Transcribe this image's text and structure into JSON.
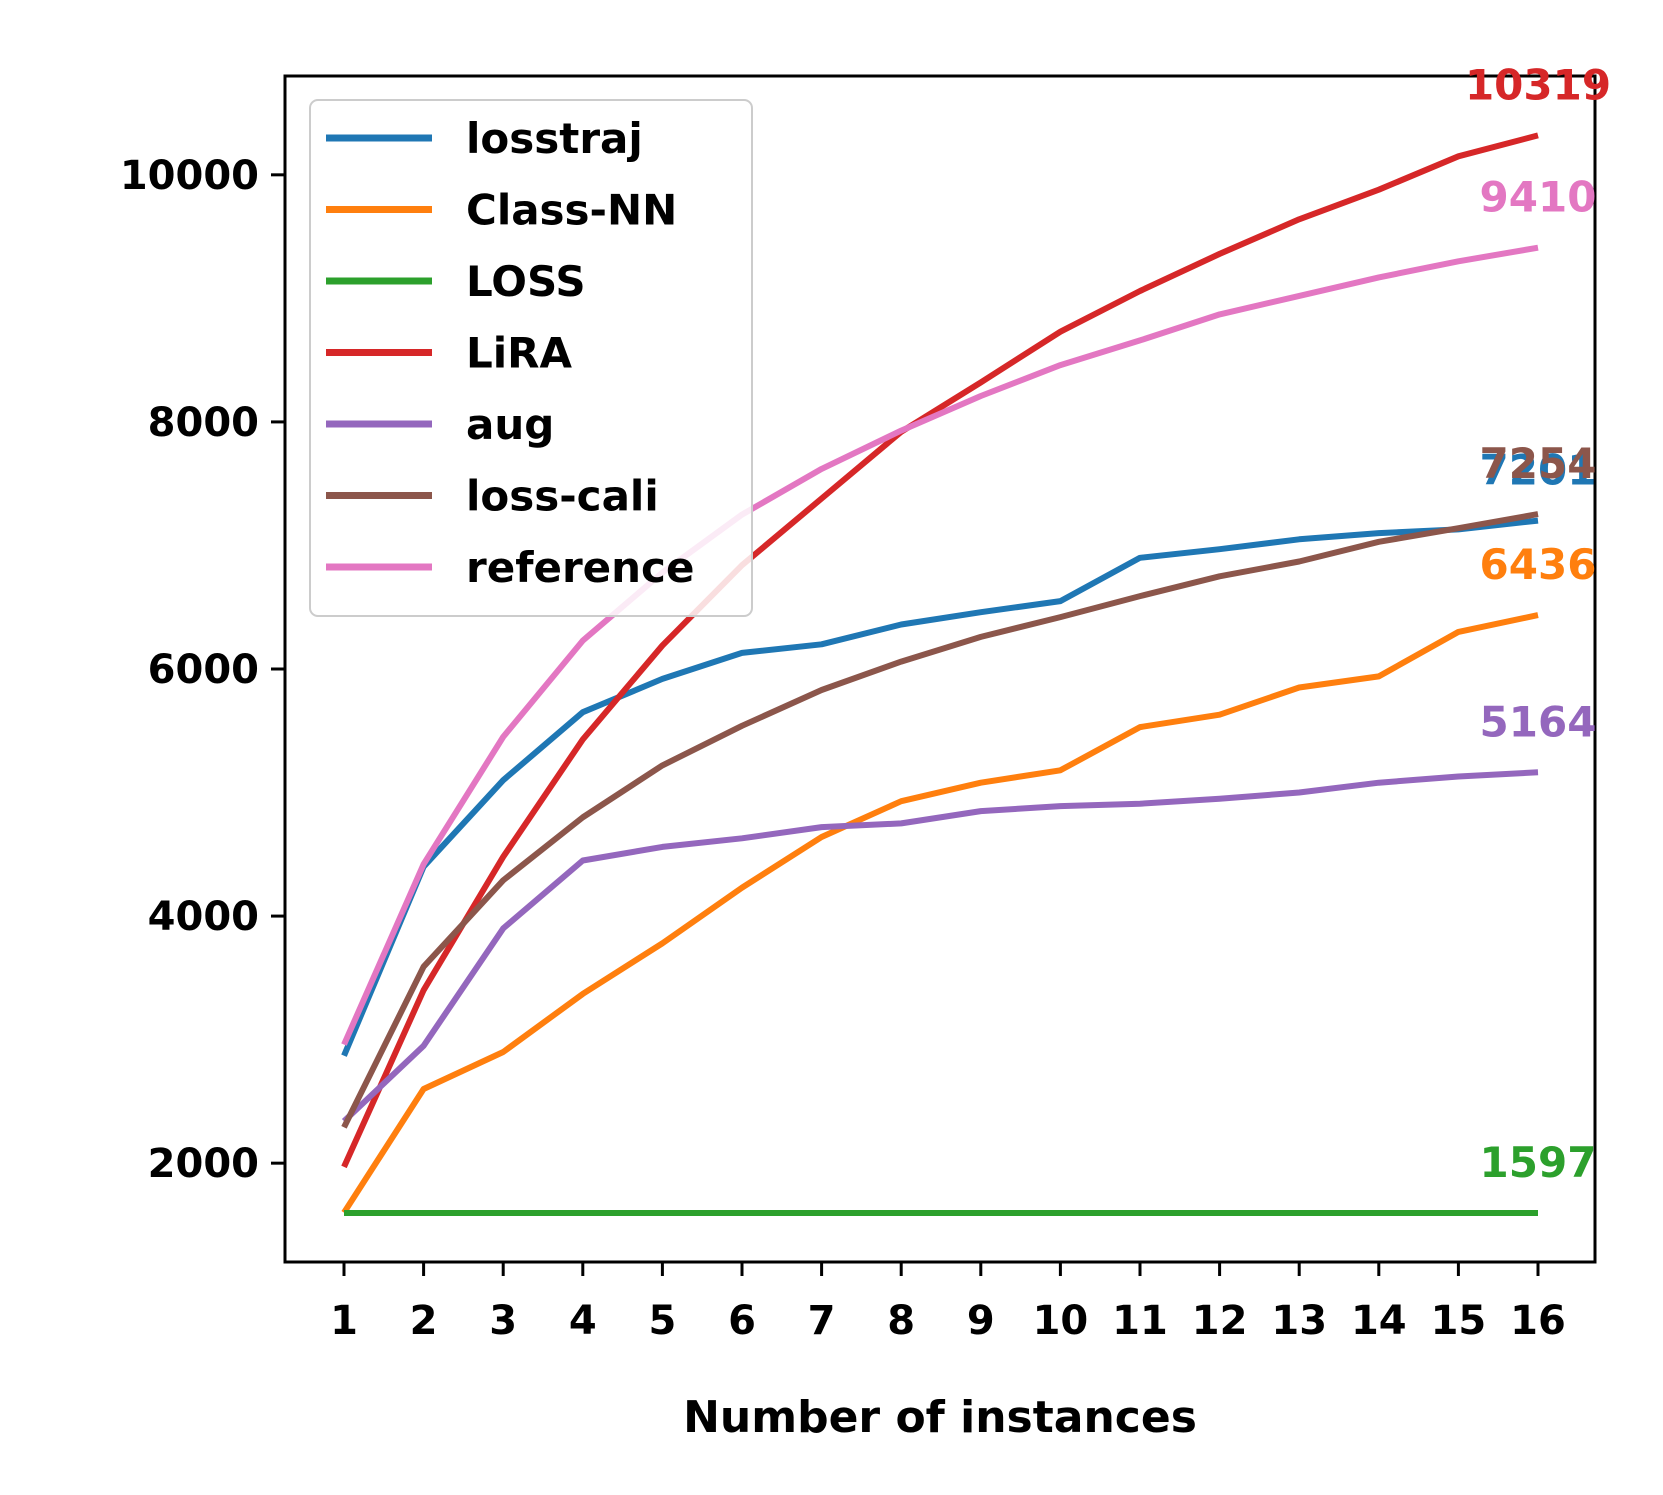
{
  "chart_data": {
    "type": "line",
    "title": "",
    "xlabel": "Number of instances",
    "ylabel": "",
    "x": [
      1,
      2,
      3,
      4,
      5,
      6,
      7,
      8,
      9,
      10,
      11,
      12,
      13,
      14,
      15,
      16
    ],
    "x_tick_labels": [
      "1",
      "2",
      "3",
      "4",
      "5",
      "6",
      "7",
      "8",
      "9",
      "10",
      "11",
      "12",
      "13",
      "14",
      "15",
      "16"
    ],
    "ylim": [
      1200,
      10800
    ],
    "y_ticks": [
      2000,
      4000,
      6000,
      8000,
      10000
    ],
    "y_tick_labels": [
      "2000",
      "4000",
      "6000",
      "8000",
      "10000"
    ],
    "grid": false,
    "legend_position": "upper-left",
    "series": [
      {
        "name": "losstraj",
        "color": "#1f77b4",
        "end_label": "7201",
        "values": [
          2870,
          4400,
          5100,
          5650,
          5920,
          6130,
          6200,
          6360,
          6460,
          6550,
          6900,
          6970,
          7050,
          7100,
          7130,
          7201
        ]
      },
      {
        "name": "Class-NN",
        "color": "#ff7f0e",
        "end_label": "6436",
        "values": [
          1600,
          2600,
          2900,
          3370,
          3780,
          4230,
          4640,
          4930,
          5080,
          5180,
          5530,
          5630,
          5850,
          5940,
          6300,
          6436
        ]
      },
      {
        "name": "LOSS",
        "color": "#2ca02c",
        "end_label": "1597",
        "values": [
          1597,
          1597,
          1597,
          1597,
          1597,
          1597,
          1597,
          1597,
          1597,
          1597,
          1597,
          1597,
          1597,
          1597,
          1597,
          1597
        ]
      },
      {
        "name": "LiRA",
        "color": "#d62728",
        "end_label": "10319",
        "values": [
          1970,
          3400,
          4480,
          5430,
          6190,
          6840,
          7380,
          7920,
          8320,
          8730,
          9060,
          9360,
          9640,
          9880,
          10150,
          10319
        ]
      },
      {
        "name": "aug",
        "color": "#9467bd",
        "end_label": "5164",
        "values": [
          2340,
          2950,
          3900,
          4450,
          4560,
          4630,
          4720,
          4750,
          4850,
          4890,
          4910,
          4950,
          5000,
          5080,
          5130,
          5164
        ]
      },
      {
        "name": "loss-cali",
        "color": "#8c564b",
        "end_label": "7254",
        "values": [
          2290,
          3590,
          4290,
          4800,
          5220,
          5540,
          5830,
          6060,
          6260,
          6420,
          6590,
          6750,
          6870,
          7030,
          7140,
          7254
        ]
      },
      {
        "name": "reference",
        "color": "#e377c2",
        "end_label": "9410",
        "values": [
          2960,
          4420,
          5450,
          6230,
          6780,
          7250,
          7620,
          7930,
          8210,
          8460,
          8660,
          8870,
          9020,
          9170,
          9300,
          9410
        ]
      }
    ]
  }
}
